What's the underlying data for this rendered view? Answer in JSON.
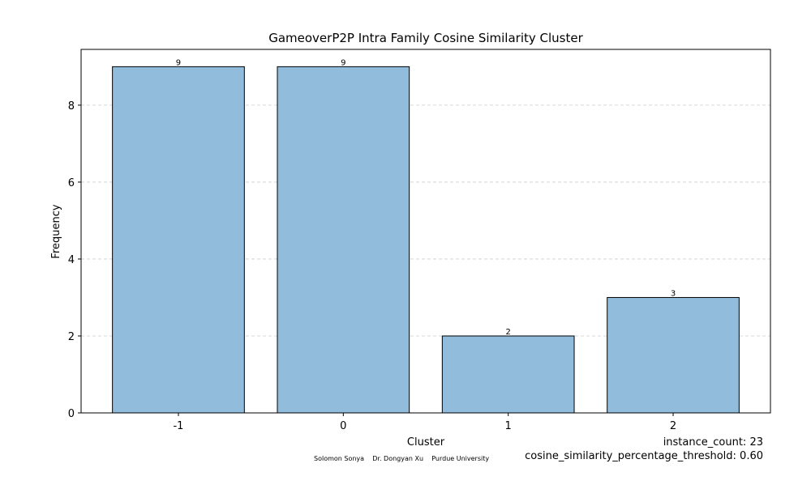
{
  "chart_data": {
    "type": "bar",
    "title": "GameoverP2P Intra Family Cosine Similarity Cluster",
    "xlabel": "Cluster",
    "ylabel": "Frequency",
    "categories": [
      "-1",
      "0",
      "1",
      "2"
    ],
    "values": [
      9,
      9,
      2,
      3
    ],
    "data_labels": [
      "9",
      "9",
      "2",
      "3"
    ],
    "ylim": [
      0,
      9.45
    ],
    "yticks": [
      0,
      2,
      4,
      6,
      8
    ],
    "grid": "y-axis dashed",
    "bar_color": "#92bcdc",
    "bar_edge_color": "#000000",
    "grid_color": "#cccccc"
  },
  "footer": {
    "credits": [
      "Solomon Sonya",
      "Dr. Dongyan Xu",
      "Purdue University"
    ],
    "instance_count": "instance_count: 23",
    "threshold": "cosine_similarity_percentage_threshold: 0.60"
  }
}
